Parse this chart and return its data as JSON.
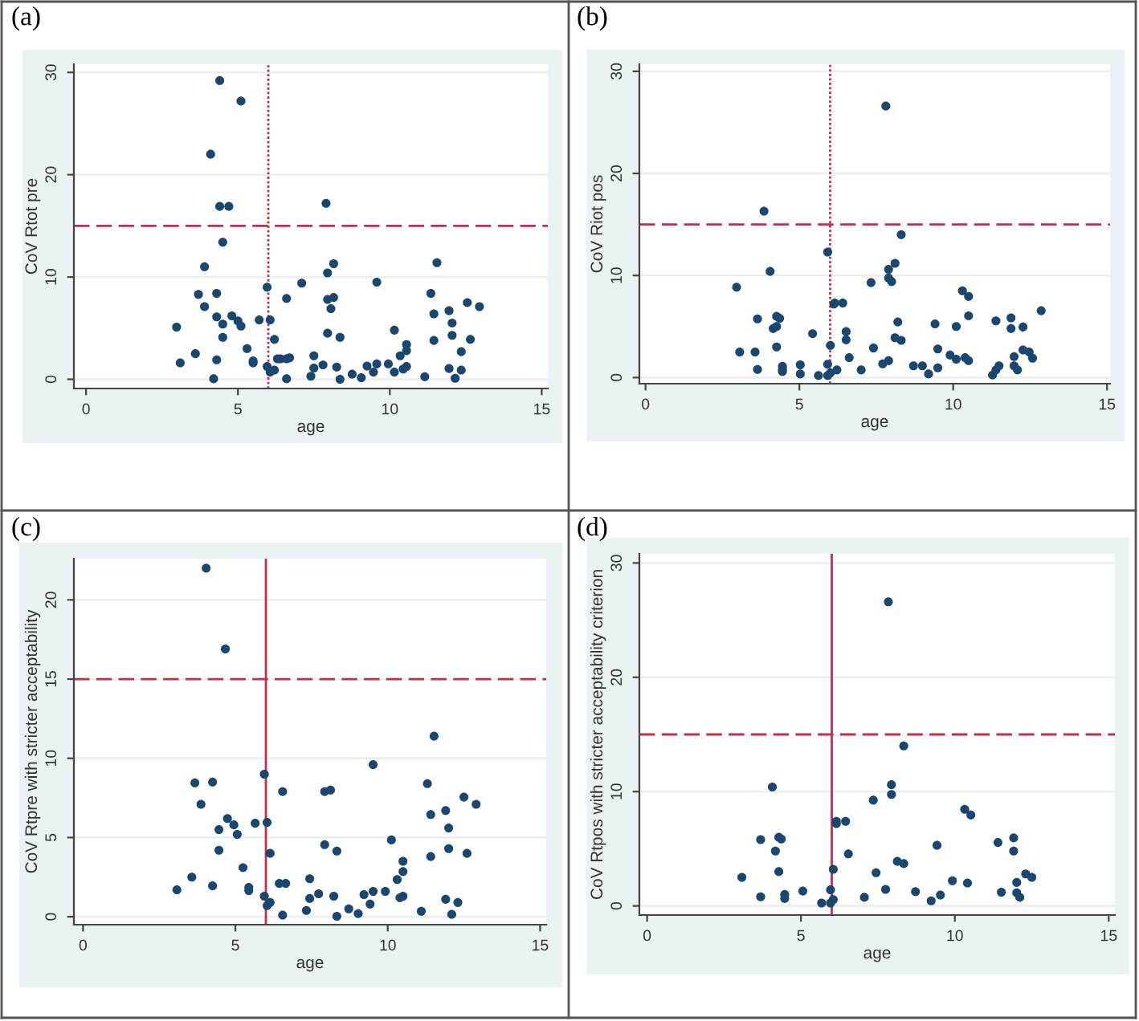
{
  "chart_data": [
    {
      "type": "scatter",
      "title": "(a)",
      "xlabel": "age",
      "ylabel": "CoV Rtot pre",
      "marker": "circle",
      "grid": "y",
      "color": "#1a476f",
      "xlim": [
        -0.4,
        15.2
      ],
      "ylim": [
        -0.9,
        30.8
      ],
      "xticks": [
        0,
        5,
        10,
        15
      ],
      "yticks": [
        0,
        10,
        20,
        30
      ],
      "ref_lines": [
        {
          "axis": "y",
          "value": 15,
          "color": "#c0304a",
          "line_style": "dashed"
        },
        {
          "axis": "x",
          "value": 6,
          "color": "#c0304a",
          "line_style": "dotted"
        }
      ],
      "x": [
        2.98,
        3.1,
        3.6,
        3.7,
        3.9,
        3.9,
        4.1,
        4.4,
        4.4,
        4.7,
        4.5,
        4.3,
        4.3,
        4.2,
        4.3,
        4.5,
        4.5,
        4.8,
        5.0,
        5.1,
        5.1,
        5.3,
        5.5,
        5.5,
        5.7,
        5.96,
        5.96,
        6.06,
        6.06,
        6.2,
        6.2,
        6.3,
        6.4,
        6.6,
        6.7,
        6.6,
        6.6,
        7.1,
        7.4,
        7.5,
        7.5,
        7.8,
        7.9,
        7.95,
        7.95,
        7.95,
        8.06,
        8.15,
        8.15,
        8.25,
        8.36,
        8.36,
        8.76,
        9.06,
        9.25,
        9.46,
        9.57,
        9.57,
        9.95,
        10.15,
        10.15,
        10.34,
        10.44,
        10.55,
        10.55,
        10.55,
        11.15,
        11.35,
        11.45,
        11.45,
        11.55,
        11.95,
        11.95,
        12.05,
        12.05,
        12.15,
        12.35,
        12.35,
        12.55,
        12.65,
        12.95
      ],
      "values": [
        5.1,
        1.6,
        2.5,
        8.3,
        11.0,
        7.1,
        22.0,
        29.2,
        16.9,
        16.9,
        13.4,
        8.4,
        6.1,
        0.05,
        1.9,
        5.4,
        4.1,
        6.2,
        5.7,
        5.2,
        27.2,
        3.0,
        1.8,
        1.6,
        5.8,
        9.0,
        1.25,
        5.8,
        0.7,
        0.9,
        3.9,
        2.0,
        2.0,
        2.0,
        2.1,
        7.9,
        0.05,
        9.4,
        0.3,
        2.3,
        1.1,
        1.4,
        17.2,
        10.4,
        7.8,
        4.5,
        6.9,
        8.0,
        11.3,
        1.2,
        4.1,
        0.0,
        0.5,
        0.15,
        1.3,
        0.7,
        9.5,
        1.5,
        1.5,
        4.8,
        0.7,
        2.3,
        1.0,
        2.8,
        3.4,
        1.25,
        0.25,
        8.4,
        6.4,
        3.8,
        11.4,
        6.7,
        1.05,
        5.5,
        4.3,
        0.1,
        2.7,
        0.9,
        7.5,
        3.9,
        7.1
      ]
    },
    {
      "type": "scatter",
      "title": "(b)",
      "xlabel": "age",
      "ylabel": "CoV Riot pos",
      "marker": "circle",
      "grid": "y",
      "color": "#1a476f",
      "xlim": [
        -0.2,
        15.1
      ],
      "ylim": [
        -0.6,
        30.7
      ],
      "xticks": [
        0,
        5,
        10,
        15
      ],
      "yticks": [
        0,
        10,
        20,
        30
      ],
      "ref_lines": [
        {
          "axis": "y",
          "value": 15,
          "color": "#c0304a",
          "line_style": "dashed"
        },
        {
          "axis": "x",
          "value": 6,
          "color": "#c0304a",
          "line_style": "dotted"
        }
      ],
      "x": [
        2.96,
        3.06,
        3.56,
        3.64,
        3.64,
        3.85,
        4.05,
        4.15,
        4.26,
        4.26,
        4.26,
        4.36,
        4.45,
        4.45,
        4.45,
        5.03,
        5.03,
        5.43,
        5.62,
        5.92,
        5.92,
        5.92,
        6.01,
        6.01,
        6.12,
        6.15,
        6.22,
        6.41,
        6.52,
        6.52,
        6.62,
        7.01,
        7.33,
        7.41,
        7.71,
        7.81,
        7.9,
        7.9,
        7.9,
        8.0,
        8.11,
        8.11,
        8.2,
        8.31,
        8.31,
        8.71,
        9.0,
        9.2,
        9.41,
        9.5,
        9.5,
        9.9,
        10.1,
        10.1,
        10.3,
        10.39,
        10.5,
        10.5,
        10.5,
        11.28,
        11.39,
        11.39,
        11.49,
        11.88,
        11.88,
        11.98,
        11.98,
        12.09,
        12.27,
        12.27,
        12.47,
        12.58,
        12.86
      ],
      "values": [
        8.85,
        2.5,
        2.5,
        5.75,
        0.8,
        16.3,
        10.4,
        4.8,
        6.0,
        5.0,
        3.0,
        5.8,
        1.1,
        0.8,
        0.6,
        1.25,
        0.35,
        4.3,
        0.2,
        12.3,
        1.3,
        0.2,
        3.15,
        0.45,
        7.2,
        7.3,
        0.75,
        7.3,
        4.5,
        3.7,
        1.95,
        0.75,
        9.3,
        2.9,
        1.35,
        26.6,
        10.6,
        9.75,
        1.65,
        9.4,
        11.2,
        3.9,
        5.45,
        3.65,
        14.0,
        1.15,
        1.15,
        0.35,
        5.25,
        2.8,
        0.95,
        2.2,
        1.8,
        5.0,
        8.5,
        1.95,
        7.95,
        6.05,
        1.65,
        0.25,
        0.75,
        5.55,
        1.15,
        5.85,
        4.8,
        2.05,
        1.15,
        0.75,
        4.95,
        2.7,
        2.5,
        1.9,
        6.55
      ]
    },
    {
      "type": "scatter",
      "title": "(c)",
      "xlabel": "age",
      "ylabel": "CoV Rtpre with stricter acceptability",
      "marker": "circle",
      "grid": "y",
      "color": "#1a476f",
      "xlim": [
        -0.3,
        15.2
      ],
      "ylim": [
        -0.5,
        22.6
      ],
      "xticks": [
        0,
        5,
        10,
        15
      ],
      "yticks": [
        0,
        5,
        10,
        15,
        20
      ],
      "ref_lines": [
        {
          "axis": "y",
          "value": 15,
          "color": "#c0304a",
          "line_style": "dashed"
        },
        {
          "axis": "x",
          "value": 6,
          "color": "#c0304a",
          "line_style": "solid"
        }
      ],
      "x": [
        3.08,
        3.57,
        3.67,
        3.87,
        4.04,
        4.25,
        4.25,
        4.46,
        4.46,
        4.67,
        4.74,
        4.95,
        5.06,
        5.25,
        5.44,
        5.44,
        5.65,
        5.95,
        5.95,
        6.04,
        6.04,
        6.14,
        6.14,
        6.44,
        6.65,
        6.55,
        6.55,
        7.33,
        7.44,
        7.44,
        7.73,
        7.93,
        8.12,
        7.93,
        8.23,
        8.33,
        8.33,
        8.72,
        9.03,
        9.22,
        9.42,
        9.52,
        9.52,
        9.92,
        10.12,
        10.31,
        10.4,
        10.5,
        10.5,
        10.5,
        11.1,
        11.3,
        11.41,
        11.41,
        11.52,
        11.9,
        11.9,
        12.0,
        12.0,
        12.1,
        12.3,
        12.5,
        12.6,
        12.9
      ],
      "values": [
        1.7,
        2.5,
        8.45,
        7.1,
        22.0,
        8.5,
        1.95,
        5.5,
        4.2,
        16.9,
        6.2,
        5.8,
        5.2,
        3.1,
        1.85,
        1.65,
        5.9,
        9.0,
        1.3,
        5.95,
        0.7,
        0.9,
        4.0,
        2.1,
        2.1,
        7.9,
        0.1,
        0.4,
        2.4,
        1.15,
        1.45,
        7.9,
        8.0,
        4.55,
        1.3,
        4.15,
        0.03,
        0.5,
        0.2,
        1.4,
        0.8,
        9.6,
        1.6,
        1.6,
        4.85,
        2.35,
        1.2,
        1.3,
        2.85,
        3.5,
        0.35,
        8.4,
        6.45,
        3.8,
        11.4,
        6.7,
        1.1,
        5.6,
        4.3,
        0.15,
        0.9,
        7.55,
        4.0,
        7.1
      ]
    },
    {
      "type": "scatter",
      "title": "(d)",
      "xlabel": "age",
      "ylabel": "CoV Rtpos with stricter acceptability criterion",
      "marker": "circle",
      "grid": "y",
      "color": "#1a476f",
      "xlim": [
        -0.25,
        15.2
      ],
      "ylim": [
        -0.8,
        30.8
      ],
      "xticks": [
        0,
        5,
        10,
        15
      ],
      "yticks": [
        0,
        10,
        20,
        30
      ],
      "ref_lines": [
        {
          "axis": "y",
          "value": 15,
          "color": "#c0304a",
          "line_style": "dashed"
        },
        {
          "axis": "x",
          "value": 6,
          "color": "#c0304a",
          "line_style": "solid"
        }
      ],
      "x": [
        3.08,
        3.69,
        3.69,
        4.07,
        4.17,
        4.28,
        4.28,
        4.36,
        4.47,
        4.47,
        5.06,
        5.67,
        5.96,
        5.96,
        6.05,
        6.05,
        6.15,
        6.15,
        6.45,
        6.54,
        7.06,
        7.35,
        7.44,
        7.75,
        7.84,
        7.94,
        7.94,
        8.13,
        8.34,
        8.34,
        8.72,
        9.23,
        9.42,
        9.53,
        9.92,
        10.32,
        10.41,
        10.52,
        11.4,
        11.51,
        11.91,
        11.91,
        12.01,
        12.01,
        12.11,
        12.3,
        12.5
      ],
      "values": [
        2.5,
        5.8,
        0.8,
        10.4,
        4.8,
        6.0,
        3.0,
        5.85,
        1.0,
        0.65,
        1.3,
        0.25,
        1.4,
        0.25,
        3.2,
        0.55,
        7.4,
        7.2,
        7.4,
        4.55,
        0.75,
        9.25,
        2.9,
        1.45,
        26.6,
        10.6,
        9.75,
        3.9,
        3.7,
        14.0,
        1.25,
        0.45,
        5.3,
        0.95,
        2.2,
        8.45,
        2.0,
        7.95,
        5.55,
        1.2,
        5.95,
        4.8,
        2.05,
        1.15,
        0.75,
        2.8,
        2.5
      ]
    }
  ]
}
